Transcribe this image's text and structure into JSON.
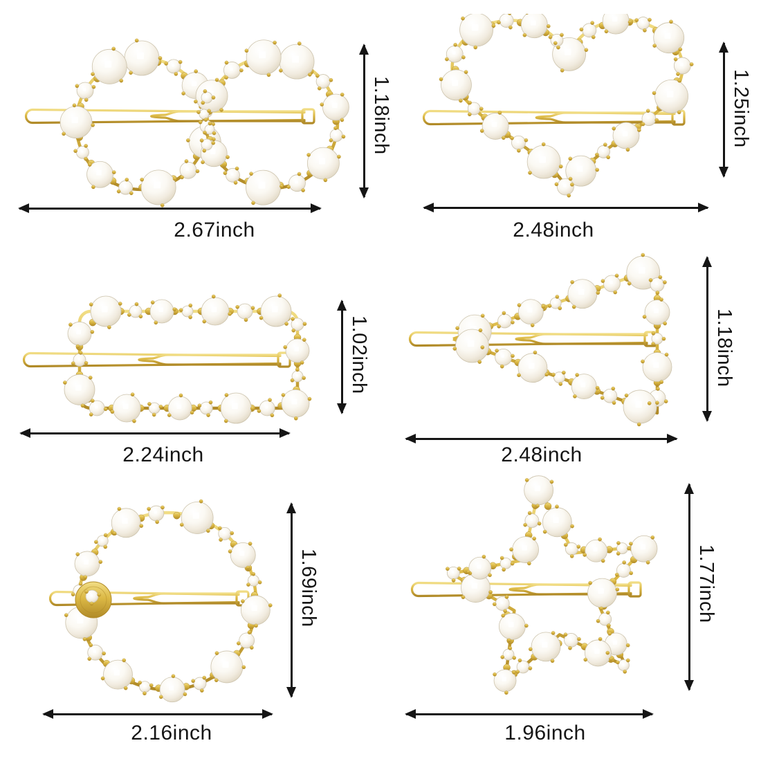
{
  "page": {
    "background": "#ffffff",
    "unit": "inch",
    "product": "pearl hair clips"
  },
  "colors": {
    "gold": "#DCB945",
    "gold_dark": "#B08A28",
    "gold_light": "#F1DD85",
    "pearl": "#F7F3EA",
    "pearl_shade": "#D5CCB7",
    "annotation": "#151515"
  },
  "clips": [
    {
      "shape": "bow",
      "width_label": "2.67inch",
      "height_label": "1.18inch"
    },
    {
      "shape": "heart",
      "width_label": "2.48inch",
      "height_label": "1.25inch"
    },
    {
      "shape": "rectangle",
      "width_label": "2.24inch",
      "height_label": "1.02inch"
    },
    {
      "shape": "triangle",
      "width_label": "2.48inch",
      "height_label": "1.18inch"
    },
    {
      "shape": "circle",
      "width_label": "2.16inch",
      "height_label": "1.69inch"
    },
    {
      "shape": "star",
      "width_label": "1.96inch",
      "height_label": "1.77inch"
    }
  ]
}
